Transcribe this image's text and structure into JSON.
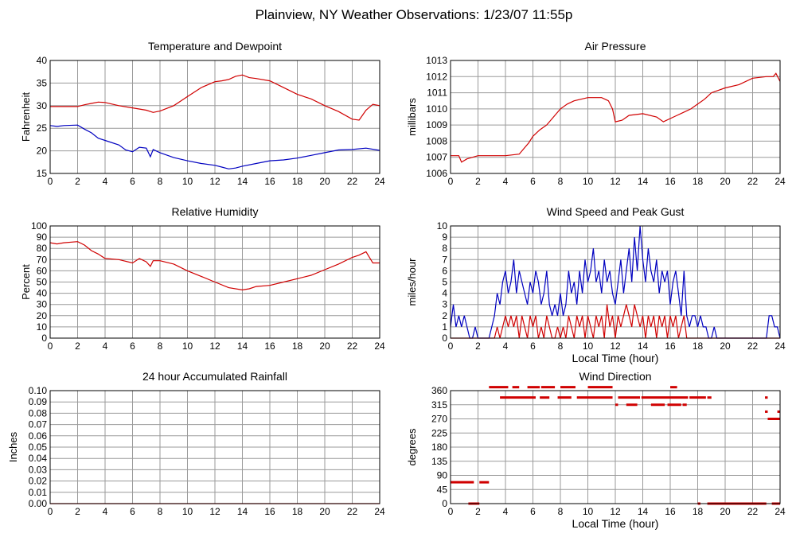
{
  "page": {
    "title": "Plainview, NY Weather Observations: 1/23/07 11:55p"
  },
  "colors": {
    "red": "#d00000",
    "blue": "#0000c0",
    "grid": "#9a9a9a",
    "frame": "#000000"
  },
  "chart_data": [
    {
      "id": "temp",
      "type": "line",
      "title": "Temperature and Dewpoint",
      "ylabel": "Fahrenheit",
      "xlabel": "",
      "xlim": [
        0,
        24
      ],
      "ylim": [
        15,
        40
      ],
      "xticks": [
        0,
        2,
        4,
        6,
        8,
        10,
        12,
        14,
        16,
        18,
        20,
        22,
        24
      ],
      "yticks": [
        15,
        20,
        25,
        30,
        35,
        40
      ],
      "series": [
        {
          "color": "#d00000",
          "x": [
            0,
            1,
            2,
            2.5,
            3,
            3.5,
            4,
            5,
            6,
            7,
            7.5,
            8,
            9,
            10,
            11,
            12,
            12.5,
            13,
            13.5,
            14,
            14.5,
            15,
            16,
            17,
            18,
            19,
            20,
            21,
            22,
            22.5,
            23,
            23.5,
            24
          ],
          "values": [
            29.8,
            29.8,
            29.8,
            30.2,
            30.5,
            30.8,
            30.7,
            30,
            29.5,
            29,
            28.5,
            28.8,
            30,
            32,
            34,
            35.3,
            35.5,
            35.8,
            36.5,
            36.8,
            36.2,
            36,
            35.5,
            34,
            32.5,
            31.5,
            30,
            28.7,
            27,
            26.8,
            29,
            30.3,
            30
          ]
        },
        {
          "color": "#0000c0",
          "x": [
            0,
            0.5,
            1,
            2,
            2.5,
            3,
            3.5,
            4,
            5,
            5.5,
            6,
            6.5,
            7,
            7.3,
            7.5,
            8,
            9,
            10,
            11,
            12,
            12.5,
            13,
            13.5,
            14,
            15,
            16,
            17,
            18,
            19,
            20,
            21,
            22,
            23,
            24
          ],
          "values": [
            25.6,
            25.4,
            25.6,
            25.7,
            24.8,
            24,
            22.8,
            22.3,
            21.3,
            20.2,
            19.8,
            20.8,
            20.6,
            18.7,
            20.3,
            19.6,
            18.5,
            17.8,
            17.2,
            16.8,
            16.4,
            16,
            16.2,
            16.6,
            17.2,
            17.8,
            18,
            18.4,
            19,
            19.6,
            20.2,
            20.3,
            20.6,
            20.1
          ]
        }
      ]
    },
    {
      "id": "press",
      "type": "line",
      "title": "Air Pressure",
      "ylabel": "millibars",
      "xlabel": "",
      "xlim": [
        0,
        24
      ],
      "ylim": [
        1006,
        1013
      ],
      "xticks": [
        0,
        2,
        4,
        6,
        8,
        10,
        12,
        14,
        16,
        18,
        20,
        22,
        24
      ],
      "yticks": [
        1006,
        1007,
        1008,
        1009,
        1010,
        1011,
        1012,
        1013
      ],
      "series": [
        {
          "color": "#d00000",
          "x": [
            0,
            0.6,
            0.8,
            1.2,
            2,
            3,
            4,
            5,
            5.3,
            5.7,
            6,
            6.5,
            7,
            7.5,
            8,
            8.5,
            9,
            10,
            11,
            11.5,
            11.8,
            12,
            12.5,
            13,
            14,
            15,
            15.5,
            16,
            16.5,
            17,
            17.5,
            18,
            18.5,
            19,
            20,
            21,
            22,
            23,
            23.5,
            23.7,
            24
          ],
          "values": [
            1007.1,
            1007.1,
            1006.7,
            1006.9,
            1007.1,
            1007.1,
            1007.1,
            1007.2,
            1007.5,
            1007.9,
            1008.3,
            1008.7,
            1009,
            1009.5,
            1010,
            1010.3,
            1010.5,
            1010.7,
            1010.7,
            1010.5,
            1010,
            1009.2,
            1009.3,
            1009.6,
            1009.7,
            1009.5,
            1009.2,
            1009.4,
            1009.6,
            1009.8,
            1010,
            1010.3,
            1010.6,
            1011,
            1011.3,
            1011.5,
            1011.9,
            1012,
            1012,
            1012.2,
            1011.7
          ]
        }
      ]
    },
    {
      "id": "rh",
      "type": "line",
      "title": "Relative Humidity",
      "ylabel": "Percent",
      "xlabel": "",
      "xlim": [
        0,
        24
      ],
      "ylim": [
        0,
        100
      ],
      "xticks": [
        0,
        2,
        4,
        6,
        8,
        10,
        12,
        14,
        16,
        18,
        20,
        22,
        24
      ],
      "yticks": [
        0,
        10,
        20,
        30,
        40,
        50,
        60,
        70,
        80,
        90,
        100
      ],
      "series": [
        {
          "color": "#d00000",
          "x": [
            0,
            0.5,
            1,
            2,
            2.5,
            3,
            3.5,
            4,
            5,
            6,
            6.5,
            7,
            7.3,
            7.5,
            8,
            9,
            10,
            11,
            12,
            13,
            14,
            14.5,
            15,
            16,
            17,
            18,
            19,
            20,
            21,
            22,
            22.5,
            23,
            23.5,
            24
          ],
          "values": [
            85,
            84,
            85,
            86,
            83,
            78,
            75,
            71,
            70,
            67,
            71,
            68,
            64,
            69,
            69,
            66,
            60,
            55,
            50,
            45,
            43,
            44,
            46,
            47,
            50,
            53,
            56,
            61,
            66,
            72,
            74,
            77,
            67,
            67
          ]
        }
      ]
    },
    {
      "id": "wind",
      "type": "line",
      "title": "Wind Speed and Peak Gust",
      "ylabel": "miles/hour",
      "xlabel": "Local Time (hour)",
      "xlim": [
        0,
        24
      ],
      "ylim": [
        0,
        10
      ],
      "xticks": [
        0,
        2,
        4,
        6,
        8,
        10,
        12,
        14,
        16,
        18,
        20,
        22,
        24
      ],
      "yticks": [
        0,
        1,
        2,
        3,
        4,
        5,
        6,
        7,
        8,
        9,
        10
      ],
      "series": [
        {
          "color": "#0000c0",
          "x": [
            0,
            0.2,
            0.4,
            0.6,
            0.8,
            1,
            1.2,
            1.4,
            1.6,
            1.8,
            2,
            2.2,
            2.4,
            2.6,
            2.8,
            3,
            3.2,
            3.4,
            3.6,
            3.8,
            4,
            4.2,
            4.4,
            4.6,
            4.8,
            5,
            5.2,
            5.4,
            5.6,
            5.8,
            6,
            6.2,
            6.4,
            6.6,
            6.8,
            7,
            7.2,
            7.4,
            7.6,
            7.8,
            8,
            8.2,
            8.4,
            8.6,
            8.8,
            9,
            9.2,
            9.4,
            9.6,
            9.8,
            10,
            10.2,
            10.4,
            10.6,
            10.8,
            11,
            11.2,
            11.4,
            11.6,
            11.8,
            12,
            12.2,
            12.4,
            12.6,
            12.8,
            13,
            13.2,
            13.4,
            13.6,
            13.8,
            14,
            14.2,
            14.4,
            14.6,
            14.8,
            15,
            15.2,
            15.4,
            15.6,
            15.8,
            16,
            16.2,
            16.4,
            16.6,
            16.8,
            17,
            17.2,
            17.4,
            17.6,
            17.8,
            18,
            18.2,
            18.4,
            18.6,
            18.8,
            19,
            19.2,
            19.4,
            19.6,
            19.8,
            20,
            20.2,
            20.4,
            20.6,
            20.8,
            21,
            21.2,
            21.4,
            21.6,
            21.8,
            22,
            22.2,
            22.4,
            22.6,
            22.8,
            23,
            23.2,
            23.4,
            23.6,
            23.8,
            24
          ],
          "values": [
            1,
            3,
            1,
            2,
            1,
            2,
            1,
            0,
            0,
            1,
            0,
            0,
            0,
            0,
            0,
            1,
            2,
            4,
            3,
            5,
            6,
            4,
            5,
            7,
            4,
            6,
            5,
            4,
            3,
            5,
            4,
            6,
            5,
            3,
            4,
            6,
            3,
            2,
            3,
            2,
            4,
            2,
            3,
            6,
            4,
            5,
            3,
            6,
            4,
            7,
            5,
            6,
            8,
            5,
            6,
            4,
            7,
            5,
            6,
            4,
            3,
            5,
            7,
            4,
            6,
            8,
            5,
            9,
            6,
            10,
            7,
            5,
            8,
            6,
            5,
            7,
            4,
            6,
            5,
            6,
            3,
            5,
            6,
            4,
            2,
            6,
            2,
            1,
            2,
            2,
            1,
            2,
            1,
            1,
            0,
            0,
            1,
            0,
            0,
            0,
            0,
            0,
            0,
            0,
            0,
            0,
            0,
            0,
            0,
            0,
            0,
            0,
            0,
            0,
            0,
            0,
            2,
            2,
            1,
            1,
            0
          ]
        },
        {
          "color": "#d00000",
          "x": [
            0,
            0.2,
            0.4,
            0.6,
            0.8,
            1,
            1.2,
            1.4,
            1.6,
            1.8,
            2,
            2.2,
            2.4,
            2.6,
            2.8,
            3,
            3.2,
            3.4,
            3.6,
            3.8,
            4,
            4.2,
            4.4,
            4.6,
            4.8,
            5,
            5.2,
            5.4,
            5.6,
            5.8,
            6,
            6.2,
            6.4,
            6.6,
            6.8,
            7,
            7.2,
            7.4,
            7.6,
            7.8,
            8,
            8.2,
            8.4,
            8.6,
            8.8,
            9,
            9.2,
            9.4,
            9.6,
            9.8,
            10,
            10.2,
            10.4,
            10.6,
            10.8,
            11,
            11.2,
            11.4,
            11.6,
            11.8,
            12,
            12.2,
            12.4,
            12.6,
            12.8,
            13,
            13.2,
            13.4,
            13.6,
            13.8,
            14,
            14.2,
            14.4,
            14.6,
            14.8,
            15,
            15.2,
            15.4,
            15.6,
            15.8,
            16,
            16.2,
            16.4,
            16.6,
            16.8,
            17,
            17.2,
            17.4,
            17.6,
            17.8,
            18,
            18.2,
            18.4,
            18.6,
            18.8,
            19,
            19.2,
            19.4,
            19.6,
            19.8,
            20,
            20.2,
            20.4,
            20.6,
            20.8,
            21,
            21.2,
            21.4,
            21.6,
            21.8,
            22,
            22.2,
            22.4,
            22.6,
            22.8,
            23,
            23.2,
            23.4,
            23.6,
            23.8,
            24
          ],
          "values": [
            0,
            0,
            0,
            0,
            0,
            0,
            0,
            0,
            0,
            0,
            0,
            0,
            0,
            0,
            0,
            0,
            0,
            1,
            0,
            1,
            2,
            1,
            2,
            1,
            2,
            0,
            2,
            1,
            0,
            2,
            1,
            2,
            0,
            1,
            0,
            2,
            1,
            0,
            0,
            1,
            0,
            1,
            0,
            2,
            1,
            0,
            2,
            1,
            2,
            0,
            2,
            1,
            0,
            2,
            1,
            2,
            0,
            3,
            1,
            2,
            0,
            2,
            1,
            2,
            3,
            2,
            1,
            3,
            2,
            1,
            2,
            0,
            2,
            1,
            2,
            0,
            2,
            1,
            2,
            0,
            2,
            1,
            2,
            0,
            1,
            2,
            0,
            0,
            0,
            0,
            0,
            0,
            0,
            0,
            0,
            0,
            0,
            0,
            0,
            0,
            0,
            0,
            0,
            0,
            0,
            0,
            0,
            0,
            0,
            0,
            0,
            0,
            0,
            0,
            0,
            0,
            0,
            0,
            0,
            0,
            0
          ]
        }
      ]
    },
    {
      "id": "rain",
      "type": "line",
      "title": "24 hour Accumulated Rainfall",
      "ylabel": "Inches",
      "xlabel": "",
      "xlim": [
        0,
        24
      ],
      "ylim": [
        0,
        0.1
      ],
      "xticks": [
        0,
        2,
        4,
        6,
        8,
        10,
        12,
        14,
        16,
        18,
        20,
        22,
        24
      ],
      "yticks": [
        "0.00",
        "0.01",
        "0.02",
        "0.03",
        "0.04",
        "0.05",
        "0.06",
        "0.07",
        "0.08",
        "0.09",
        "0.10"
      ],
      "series": [
        {
          "color": "#d00000",
          "x": [
            0,
            24
          ],
          "values": [
            0,
            0
          ]
        }
      ]
    },
    {
      "id": "dir",
      "type": "scatter",
      "title": "Wind Direction",
      "ylabel": "degrees",
      "xlabel": "Local Time (hour)",
      "xlim": [
        0,
        24
      ],
      "ylim": [
        0,
        360
      ],
      "xticks": [
        0,
        2,
        4,
        6,
        8,
        10,
        12,
        14,
        16,
        18,
        20,
        22,
        24
      ],
      "yticks": [
        0,
        45,
        90,
        135,
        180,
        225,
        270,
        315,
        360
      ],
      "series": [
        {
          "color": "#d00000",
          "segments": [
            [
              0,
              1.7,
              68
            ],
            [
              2.1,
              2.8,
              68
            ],
            [
              1.3,
              2.1,
              0
            ],
            [
              2.8,
              4.2,
              371
            ],
            [
              4.5,
              5,
              371
            ],
            [
              5.6,
              6.5,
              371
            ],
            [
              6.6,
              7.6,
              371
            ],
            [
              8,
              9.1,
              371
            ],
            [
              10,
              11.8,
              371
            ],
            [
              16,
              16.5,
              371
            ],
            [
              3.6,
              6.2,
              338
            ],
            [
              6.5,
              7.2,
              338
            ],
            [
              7.8,
              8.8,
              338
            ],
            [
              9.2,
              11.8,
              338
            ],
            [
              12.2,
              13.8,
              338
            ],
            [
              13.9,
              17.3,
              338
            ],
            [
              17.4,
              18.6,
              338
            ],
            [
              18.7,
              19,
              338
            ],
            [
              12,
              12.2,
              315
            ],
            [
              12.8,
              13.6,
              315
            ],
            [
              14.6,
              15.6,
              315
            ],
            [
              15.8,
              16.8,
              315
            ],
            [
              16.9,
              17.2,
              315
            ],
            [
              18,
              18.2,
              0
            ],
            [
              18.7,
              23,
              0
            ],
            [
              23.4,
              24,
              0
            ],
            [
              22.9,
              23.1,
              338
            ],
            [
              22.9,
              23.1,
              293
            ],
            [
              23.1,
              24,
              270
            ],
            [
              23.8,
              24,
              293
            ]
          ]
        }
      ]
    }
  ]
}
